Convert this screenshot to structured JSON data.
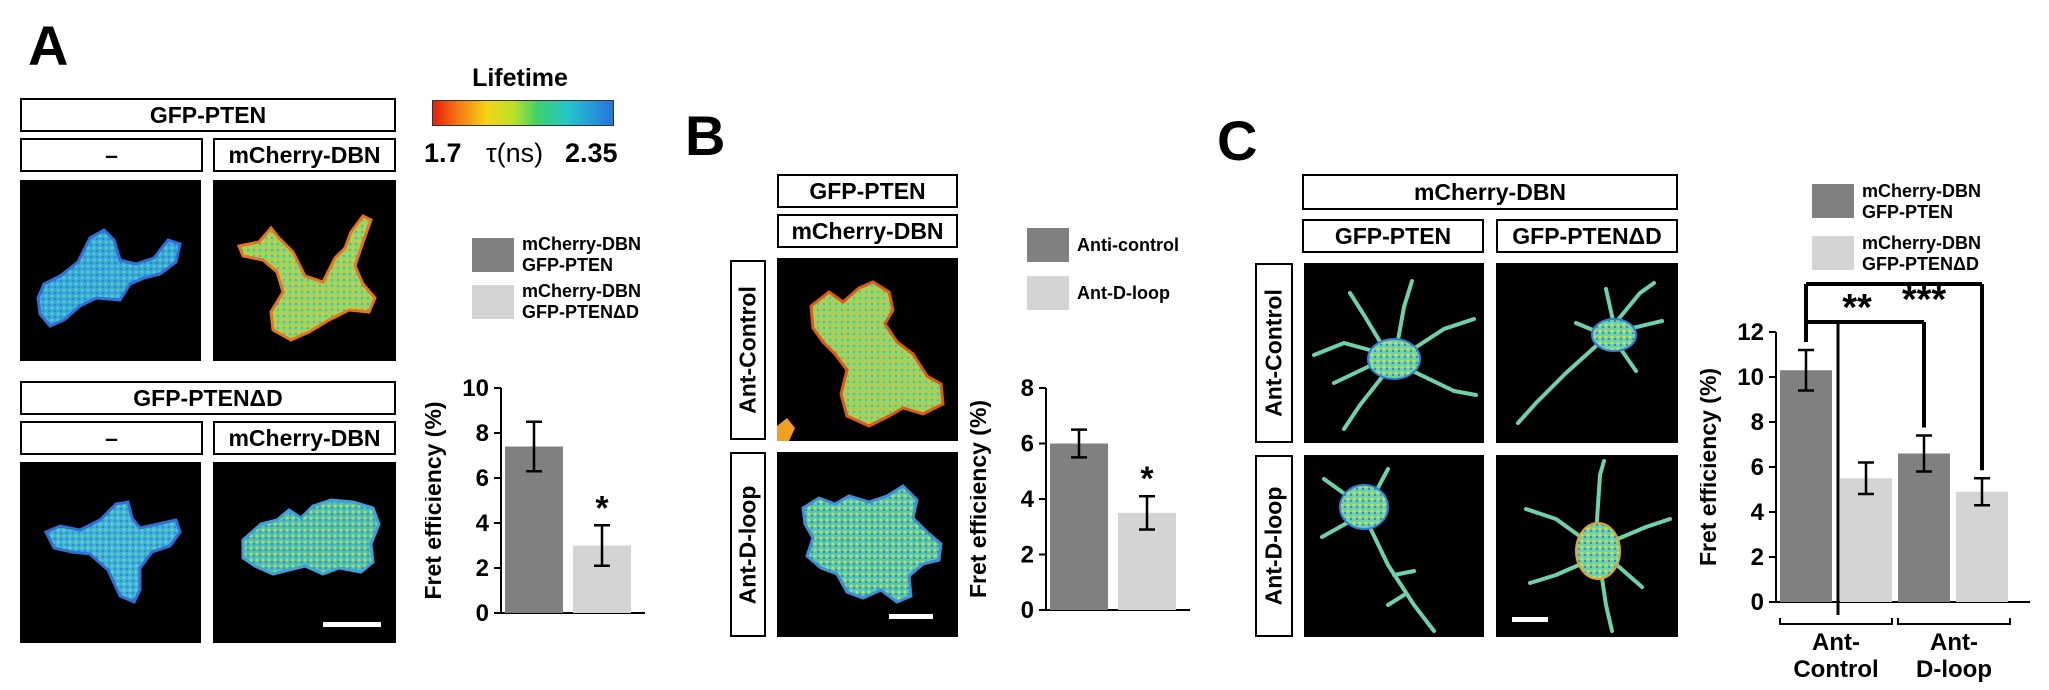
{
  "panels": {
    "A": {
      "letter": "A",
      "lifetime": {
        "title": "Lifetime",
        "min_label": "1.7",
        "unit_label": "τ(ns)",
        "max_label": "2.35"
      },
      "top_header": "GFP-PTEN",
      "top_cols": [
        "–",
        "mCherry-DBN"
      ],
      "bottom_header": "GFP-PTENΔD",
      "bottom_cols": [
        "–",
        "mCherry-DBN"
      ]
    },
    "B": {
      "letter": "B",
      "header1": "GFP-PTEN",
      "header2": "mCherry-DBN",
      "rows": [
        "Ant-Control",
        "Ant-D-loop"
      ]
    },
    "C": {
      "letter": "C",
      "header": "mCherry-DBN",
      "cols": [
        "GFP-PTEN",
        "GFP-PTENΔD"
      ],
      "rows": [
        "Ant-Control",
        "Ant-D-loop"
      ]
    }
  },
  "chart_data": [
    {
      "type": "bar",
      "panel": "A",
      "categories": [
        "mCherry-DBN GFP-PTEN",
        "mCherry-DBN GFP-PTENΔD"
      ],
      "values": [
        7.4,
        3.0
      ],
      "errors": [
        1.1,
        0.9
      ],
      "colors": [
        "#808080",
        "#d4d4d4"
      ],
      "legend": [
        [
          "mCherry-DBN",
          "GFP-PTEN"
        ],
        [
          "mCherry-DBN",
          "GFP-PTENΔD"
        ]
      ],
      "ylabel": "Fret efficiency (%)",
      "ylim": [
        0,
        10
      ],
      "yticks": [
        0,
        2,
        4,
        6,
        8,
        10
      ],
      "annotations": [
        "*"
      ]
    },
    {
      "type": "bar",
      "panel": "B",
      "categories": [
        "Anti-control",
        "Ant-D-loop"
      ],
      "values": [
        6.0,
        3.5
      ],
      "errors": [
        0.5,
        0.6
      ],
      "colors": [
        "#808080",
        "#d4d4d4"
      ],
      "legend": [
        [
          "Anti-control"
        ],
        [
          "Ant-D-loop"
        ]
      ],
      "ylabel": "Fret efficiency (%)",
      "ylim": [
        0,
        8
      ],
      "yticks": [
        0,
        2,
        4,
        6,
        8
      ],
      "annotations": [
        "*"
      ]
    },
    {
      "type": "bar",
      "panel": "C",
      "categories": [
        "Ant-Control GFP-PTEN",
        "Ant-Control GFP-PTENΔD",
        "Ant-D-loop GFP-PTEN",
        "Ant-D-loop GFP-PTENΔD"
      ],
      "values": [
        10.3,
        5.5,
        6.6,
        4.9
      ],
      "errors": [
        0.9,
        0.7,
        0.8,
        0.6
      ],
      "colors": [
        "#808080",
        "#d4d4d4",
        "#808080",
        "#d4d4d4"
      ],
      "legend": [
        [
          "mCherry-DBN",
          "GFP-PTEN"
        ],
        [
          "mCherry-DBN",
          "GFP-PTENΔD"
        ]
      ],
      "group_labels": [
        [
          "Ant-",
          "Control"
        ],
        [
          "Ant-",
          "D-loop"
        ]
      ],
      "ylabel": "Fret efficiency (%)",
      "ylim": [
        0,
        12
      ],
      "yticks": [
        0,
        2,
        4,
        6,
        8,
        10,
        12
      ],
      "significance": [
        "**",
        "***"
      ]
    }
  ]
}
